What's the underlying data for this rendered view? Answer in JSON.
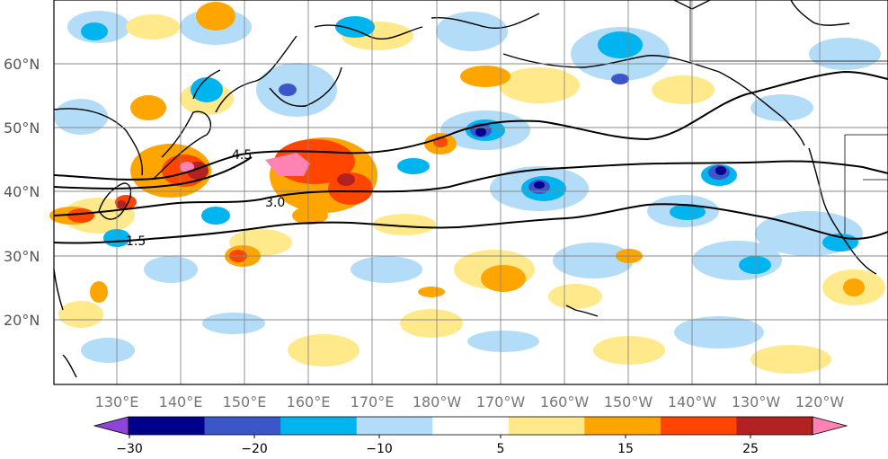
{
  "map": {
    "lat_labels": [
      "60°N",
      "50°N",
      "40°N",
      "30°N",
      "20°N"
    ],
    "lon_labels": [
      "130°E",
      "140°E",
      "150°E",
      "160°E",
      "170°E",
      "180°W",
      "170°W",
      "160°W",
      "150°W",
      "140°W",
      "130°W",
      "120°W"
    ],
    "contour_labels": [
      "4.5",
      "3.0",
      "1.5"
    ]
  },
  "colorbar": {
    "labels": [
      "−30",
      "−20",
      "−10",
      "5",
      "15",
      "25"
    ],
    "colors": [
      "#8e44d6",
      "#00008b",
      "#3a56c8",
      "#00b4f0",
      "#b3dcf8",
      "#ffffff",
      "#ffe98a",
      "#ffa500",
      "#ff4500",
      "#b22222",
      "#ff82b4"
    ]
  }
}
